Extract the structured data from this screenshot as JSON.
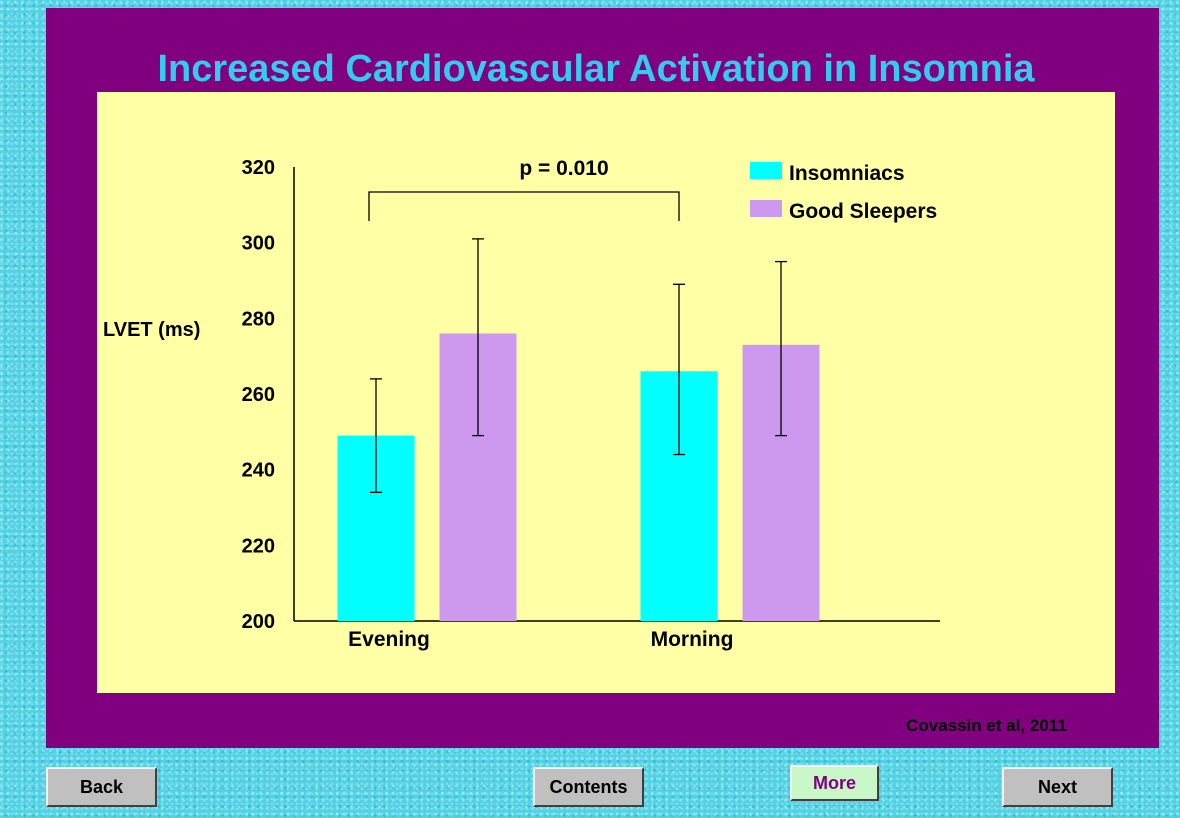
{
  "slide": {
    "title": "Increased Cardiovascular Activation in Insomnia",
    "credit": "Covassin et al, 2011",
    "colors": {
      "outer_background": "#4fd2e4",
      "slide_background": "#800080",
      "panel_background": "#ffffa6",
      "title": "#33ccee"
    }
  },
  "nav": {
    "back": "Back",
    "contents": "Contents",
    "more": "More",
    "next": "Next"
  },
  "chart_data": {
    "type": "bar",
    "ylabel": "LVET (ms)",
    "ylim": [
      200,
      320
    ],
    "yticks": [
      "200",
      "220",
      "240",
      "260",
      "280",
      "300",
      "320"
    ],
    "categories": [
      "Evening",
      "Morning"
    ],
    "series": [
      {
        "name": "Insomniacs",
        "color": "#00ffff",
        "values": [
          249,
          266
        ],
        "error_low": [
          234,
          244
        ],
        "error_high": [
          264,
          289
        ]
      },
      {
        "name": "Good Sleepers",
        "color": "#cc99ee",
        "values": [
          276,
          273
        ],
        "error_low": [
          249,
          249
        ],
        "error_high": [
          301,
          295
        ]
      }
    ],
    "annotation": {
      "text": "p = 0.010",
      "from_series": "Insomniacs",
      "between_categories": [
        "Evening",
        "Morning"
      ]
    },
    "legend_position": "top-right",
    "grid": false
  }
}
